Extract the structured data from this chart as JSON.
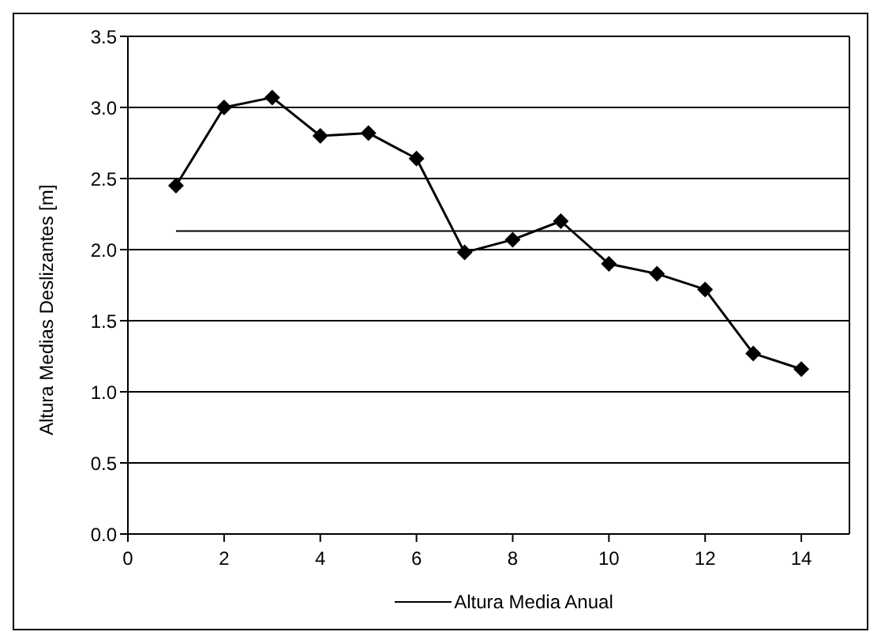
{
  "chart_data": {
    "type": "line",
    "ylabel": "Altura Medias Deslizantes [m]",
    "xlim": [
      0,
      15
    ],
    "xticks": [
      0,
      2,
      4,
      6,
      8,
      10,
      12,
      14
    ],
    "ylim": [
      0,
      3.5
    ],
    "yticks": [
      {
        "value": 0,
        "label": "0.0"
      },
      {
        "value": 0.5,
        "label": "0.5"
      },
      {
        "value": 1,
        "label": "1.0"
      },
      {
        "value": 1.5,
        "label": "1.5"
      },
      {
        "value": 2,
        "label": "2.0"
      },
      {
        "value": 2.5,
        "label": "2.5"
      },
      {
        "value": 3,
        "label": "3.0"
      },
      {
        "value": 3.5,
        "label": "3.5"
      }
    ],
    "grid": "y",
    "legend": "bottom",
    "series": [
      {
        "color": "#000000",
        "marker": "diamond",
        "x": [
          1,
          2,
          3,
          4,
          5,
          6,
          7,
          8,
          9,
          10,
          11,
          12,
          13,
          14
        ],
        "values": [
          2.45,
          3.0,
          3.07,
          2.8,
          2.82,
          2.64,
          1.98,
          2.07,
          2.2,
          1.9,
          1.83,
          1.72,
          1.27,
          1.16
        ]
      },
      {
        "name": "Altura Media Anual",
        "color": "#000000",
        "marker": "none",
        "x": [
          1,
          15
        ],
        "values": [
          2.13,
          2.13
        ]
      }
    ]
  }
}
